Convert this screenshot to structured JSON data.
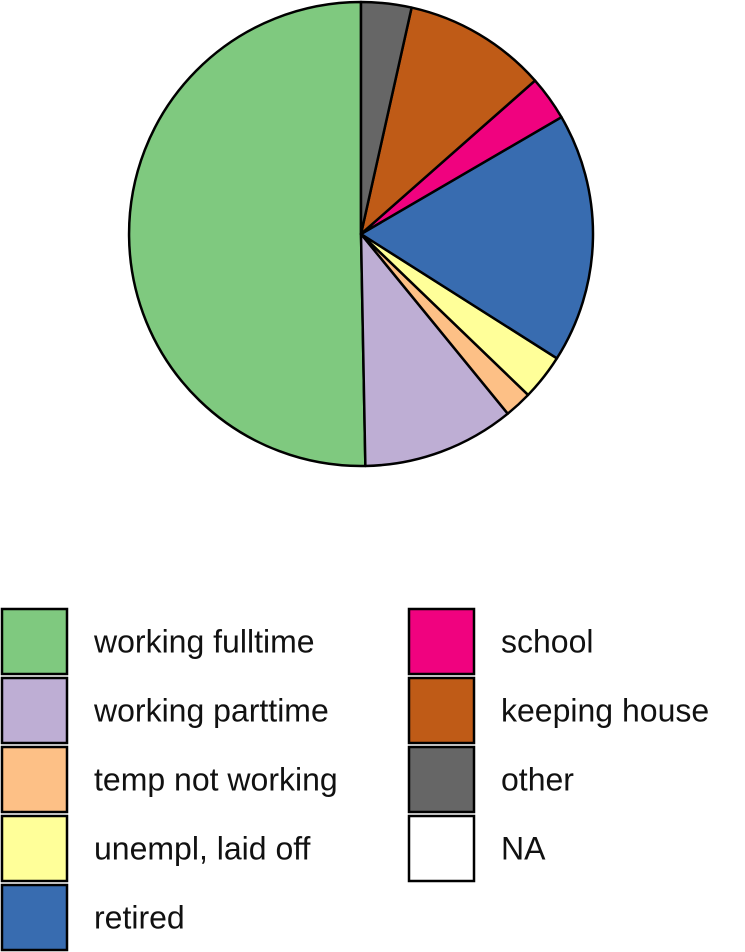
{
  "chart_data": {
    "type": "pie",
    "title": "",
    "slices": [
      {
        "label": "working fulltime",
        "value": 50.3,
        "color": "#7FC97F"
      },
      {
        "label": "working parttime",
        "value": 10.6,
        "color": "#BEAED4"
      },
      {
        "label": "temp not working",
        "value": 1.9,
        "color": "#FDC086"
      },
      {
        "label": "unempl, laid off",
        "value": 3.2,
        "color": "#FFFF99"
      },
      {
        "label": "retired",
        "value": 17.4,
        "color": "#386CB0"
      },
      {
        "label": "school",
        "value": 3.1,
        "color": "#F0027F"
      },
      {
        "label": "keeping house",
        "value": 10.0,
        "color": "#BF5B17"
      },
      {
        "label": "other",
        "value": 3.5,
        "color": "#666666"
      },
      {
        "label": "NA",
        "value": 0.0,
        "color": "#FFFFFF"
      }
    ],
    "start": "12 o'clock",
    "direction": "counterclockwise",
    "legend": {
      "position": "bottom",
      "columns": 2
    }
  }
}
